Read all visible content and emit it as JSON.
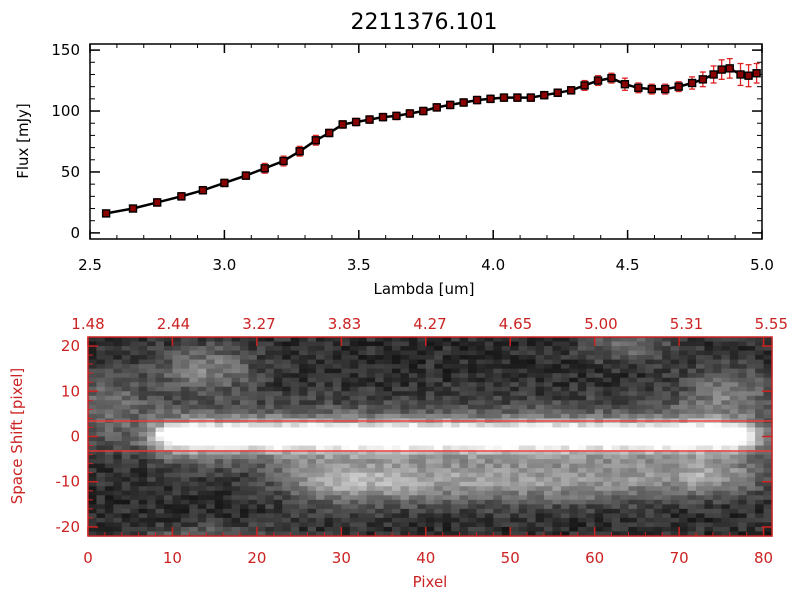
{
  "colors": {
    "spectrum_line": "#000000",
    "spectrum_marker": "#8b0000",
    "error_bar": "#dd2222",
    "image_axis": "#cc2222",
    "image_marker_lines": "#ff3333",
    "background": "#ffffff"
  },
  "chart_data": [
    {
      "type": "line",
      "title": "2211376.101",
      "xlabel": "Lambda [um]",
      "ylabel": "Flux [mJy]",
      "xlim": [
        2.5,
        5.0
      ],
      "ylim": [
        -5,
        155
      ],
      "x_ticks": [
        "2.5",
        "3.0",
        "3.5",
        "4.0",
        "4.5",
        "5.0"
      ],
      "y_ticks": [
        "0",
        "50",
        "100",
        "150"
      ],
      "series": [
        {
          "x": [
            2.56,
            2.66,
            2.75,
            2.84,
            2.92,
            3.0,
            3.08,
            3.15,
            3.22,
            3.28,
            3.34,
            3.39,
            3.44,
            3.49,
            3.54,
            3.59,
            3.64,
            3.69,
            3.74,
            3.79,
            3.84,
            3.89,
            3.94,
            3.99,
            4.04,
            4.09,
            4.14,
            4.19,
            4.24,
            4.29,
            4.34,
            4.39,
            4.44,
            4.49,
            4.54,
            4.59,
            4.64,
            4.69,
            4.74,
            4.78,
            4.82,
            4.85,
            4.88,
            4.92,
            4.95,
            4.98
          ],
          "y": [
            16,
            20,
            25,
            30,
            35,
            41,
            47,
            53,
            59,
            67,
            76,
            82,
            89,
            91,
            93,
            95,
            96,
            98,
            100,
            103,
            105,
            107,
            109,
            110,
            111,
            111,
            111,
            113,
            115,
            117,
            121,
            125,
            127,
            122,
            119,
            118,
            118,
            120,
            123,
            126,
            130,
            134,
            135,
            130,
            129,
            131
          ],
          "yerr": [
            2,
            2,
            3,
            3,
            3,
            3,
            3,
            4,
            4,
            4,
            4,
            3,
            3,
            3,
            3,
            3,
            3,
            3,
            3,
            3,
            3,
            3,
            3,
            3,
            3,
            3,
            3,
            3,
            3,
            3,
            4,
            4,
            4,
            5,
            4,
            4,
            4,
            4,
            5,
            6,
            7,
            8,
            8,
            9,
            9,
            8
          ]
        }
      ]
    },
    {
      "type": "heatmap",
      "xlabel": "Pixel",
      "ylabel": "Space Shift [pixel]",
      "xlim": [
        0,
        81
      ],
      "ylim": [
        -22,
        22
      ],
      "x_ticks": [
        "0",
        "10",
        "20",
        "30",
        "40",
        "50",
        "60",
        "70",
        "80"
      ],
      "y_ticks": [
        "-20",
        "-10",
        "0",
        "10",
        "20"
      ],
      "top_ticks": [
        "1.48",
        "2.44",
        "3.27",
        "3.83",
        "4.27",
        "4.65",
        "5.00",
        "5.31",
        "5.55"
      ],
      "marker_lines": [
        3,
        -3
      ],
      "grid": false
    }
  ]
}
